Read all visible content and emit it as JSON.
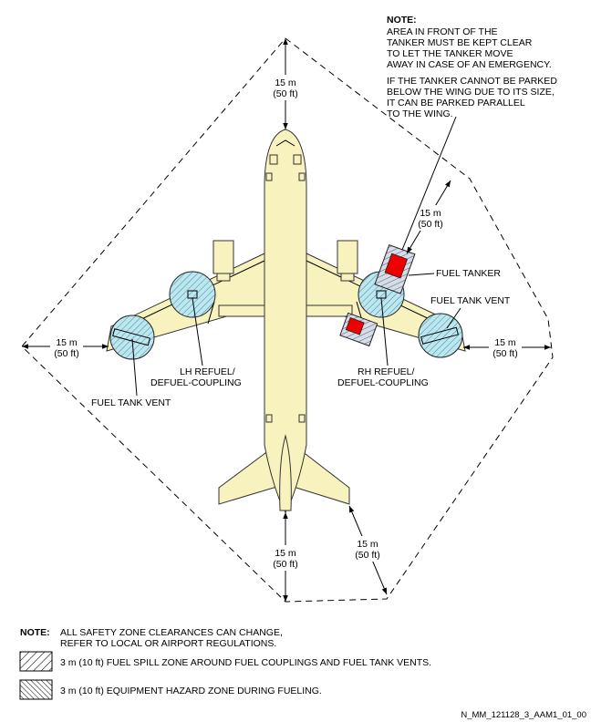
{
  "diagram": {
    "note_title": "NOTE:",
    "note_lines": [
      "AREA IN FRONT OF THE",
      "TANKER MUST BE KEPT CLEAR",
      "TO LET THE TANKER MOVE",
      "AWAY IN CASE OF AN EMERGENCY.",
      "IF THE TANKER CANNOT BE PARKED",
      "BELOW THE WING DUE TO ITS SIZE,",
      "IT CAN BE PARKED PARALLEL",
      "TO THE WING."
    ],
    "dimensions": {
      "top": [
        "15 m",
        "(50 ft)"
      ],
      "left": [
        "15 m",
        "(50 ft)"
      ],
      "right": [
        "15 m",
        "(50 ft)"
      ],
      "bottom": [
        "15 m",
        "(50 ft)"
      ],
      "bottom_right": [
        "15 m",
        "(50 ft)"
      ],
      "upper_right": [
        "15 m",
        "(50 ft)"
      ]
    },
    "labels": {
      "fuel_tanker": "FUEL TANKER",
      "fuel_tank_vent_right": "FUEL TANK VENT",
      "fuel_tank_vent_left": "FUEL TANK VENT",
      "lh_coupling": [
        "LH REFUEL/",
        "DEFUEL-COUPLING"
      ],
      "rh_coupling": [
        "RH REFUEL/",
        "DEFUEL-COUPLING"
      ]
    },
    "colors": {
      "aircraft_fill": "#f8f2bf",
      "zone_hatch": "#8fd6e6",
      "tanker_body": "#ee0000"
    }
  },
  "legend": {
    "note_title": "NOTE:",
    "note_lines": [
      "ALL SAFETY ZONE CLEARANCES CAN CHANGE,",
      "REFER TO LOCAL OR AIRPORT REGULATIONS."
    ],
    "items": [
      {
        "icon": "fuel-spill-hatch-icon",
        "text": "3 m (10 ft) FUEL SPILL ZONE AROUND FUEL COUPLINGS AND FUEL TANK VENTS."
      },
      {
        "icon": "equipment-hazard-hatch-icon",
        "text": "3 m (10 ft) EQUIPMENT HAZARD ZONE DURING FUELING."
      }
    ]
  },
  "figure_id": "N_MM_121128_3_AAM1_01_00"
}
